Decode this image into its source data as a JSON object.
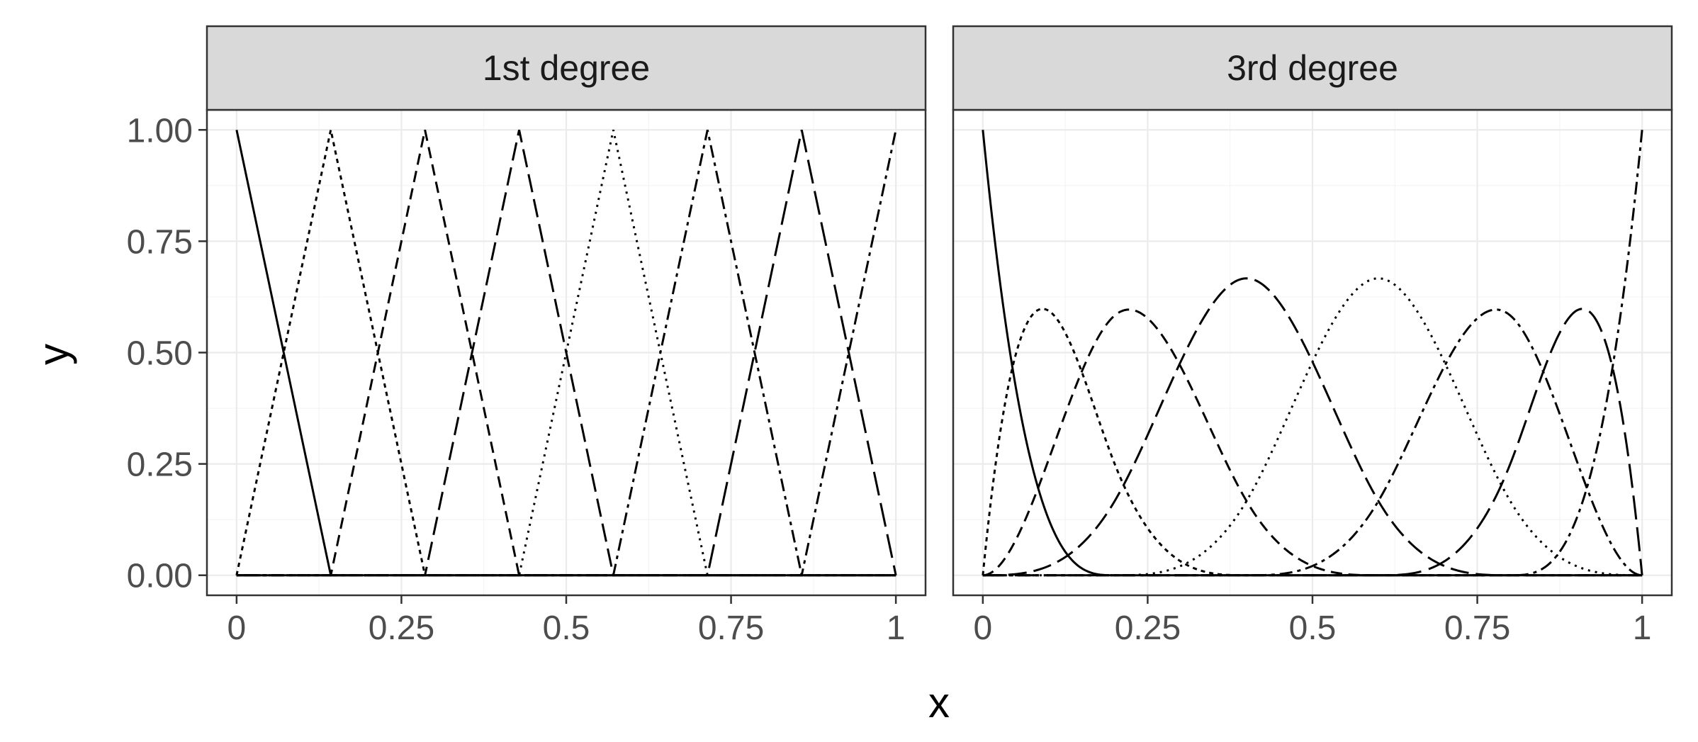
{
  "chart_data": {
    "type": "line",
    "xlabel": "x",
    "ylabel": "y",
    "xlim": [
      0,
      1
    ],
    "ylim": [
      0,
      1
    ],
    "x_tick_labels": [
      "0",
      "0.25",
      "0.5",
      "0.75",
      "1"
    ],
    "y_tick_labels": [
      "0.00",
      "0.25",
      "0.50",
      "0.75",
      "1.00"
    ],
    "grid": true,
    "legend": "none",
    "facets": [
      {
        "label": "1st degree",
        "degree": 1,
        "knots": [
          0,
          0.142857,
          0.285714,
          0.428571,
          0.571429,
          0.714286,
          0.857143,
          1
        ],
        "series": [
          {
            "linetype": "solid",
            "x": [
              0,
              0.142857,
              1
            ],
            "y": [
              1,
              0,
              0
            ]
          },
          {
            "linetype": "dotted",
            "x": [
              0,
              0.142857,
              0.285714,
              1
            ],
            "y": [
              0,
              1,
              0,
              0
            ]
          },
          {
            "linetype": "dashed",
            "x": [
              0,
              0.142857,
              0.285714,
              0.428571,
              1
            ],
            "y": [
              0,
              0,
              1,
              0,
              0
            ]
          },
          {
            "linetype": "longdash",
            "x": [
              0,
              0.285714,
              0.428571,
              0.571429,
              1
            ],
            "y": [
              0,
              0,
              1,
              0,
              0
            ]
          },
          {
            "linetype": "dotted-fine",
            "x": [
              0,
              0.428571,
              0.571429,
              0.714286,
              1
            ],
            "y": [
              0,
              0,
              1,
              0,
              0
            ]
          },
          {
            "linetype": "dotdash",
            "x": [
              0,
              0.571429,
              0.714286,
              0.857143,
              1
            ],
            "y": [
              0,
              0,
              1,
              0,
              0
            ]
          },
          {
            "linetype": "longdash-wide",
            "x": [
              0,
              0.714286,
              0.857143,
              1
            ],
            "y": [
              0,
              0,
              1,
              0
            ]
          },
          {
            "linetype": "dotdash",
            "x": [
              0,
              0.857143,
              1
            ],
            "y": [
              0,
              0,
              1
            ]
          }
        ]
      },
      {
        "label": "3rd degree",
        "degree": 3,
        "knots": [
          0,
          0,
          0,
          0,
          0.2,
          0.4,
          0.6,
          0.8,
          1,
          1,
          1,
          1
        ],
        "series": [
          {
            "linetype": "solid"
          },
          {
            "linetype": "dotted"
          },
          {
            "linetype": "dashed"
          },
          {
            "linetype": "longdash"
          },
          {
            "linetype": "dotted-fine"
          },
          {
            "linetype": "dotdash"
          },
          {
            "linetype": "longdash-wide"
          },
          {
            "linetype": "dotdash"
          }
        ]
      }
    ]
  }
}
